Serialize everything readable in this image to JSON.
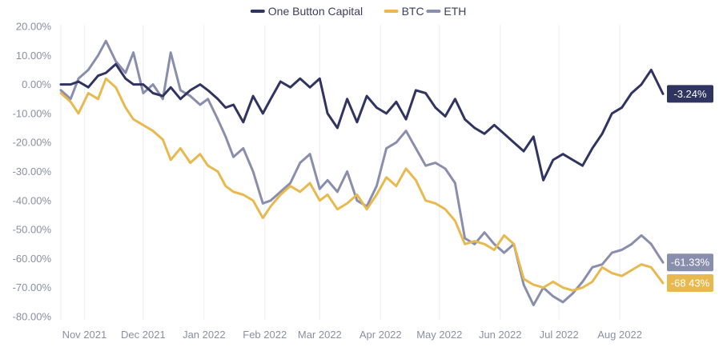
{
  "chart_data": {
    "type": "line",
    "title": "",
    "xlabel": "",
    "ylabel": "",
    "ylim": [
      -80,
      20
    ],
    "y_ticks": [
      20,
      10,
      0,
      -10,
      -20,
      -30,
      -40,
      -50,
      -60,
      -70,
      -80
    ],
    "y_tick_labels": [
      "20.00%",
      "10.00%",
      "0.00%",
      "-10.00%",
      "-20.00%",
      "-30.00%",
      "-40.00%",
      "-50.00%",
      "-60.00%",
      "-70.00%",
      "-80.00%"
    ],
    "x_range": [
      "2021-10-20",
      "2022-08-23"
    ],
    "x_ticks": [
      "2021-11-01",
      "2021-12-01",
      "2022-01-01",
      "2022-02-01",
      "2022-03-01",
      "2022-04-01",
      "2022-05-01",
      "2022-06-01",
      "2022-07-01",
      "2022-08-01"
    ],
    "x_tick_labels": [
      "Nov 2021",
      "Dec 2021",
      "Jan 2022",
      "Feb 2022",
      "Mar 2022",
      "Apr 2022",
      "May 2022",
      "Jun 2022",
      "Jul 2022",
      "Aug 2022"
    ],
    "grid": "vertical",
    "legend": "top-center",
    "series": [
      {
        "name": "One Button Capital",
        "color": "#2f3460",
        "end_label": "-3.24%",
        "x": [
          "2021-10-20",
          "2021-10-25",
          "2021-10-29",
          "2021-11-03",
          "2021-11-08",
          "2021-11-12",
          "2021-11-17",
          "2021-11-22",
          "2021-11-26",
          "2021-12-01",
          "2021-12-06",
          "2021-12-11",
          "2021-12-15",
          "2021-12-20",
          "2021-12-25",
          "2021-12-30",
          "2022-01-03",
          "2022-01-08",
          "2022-01-12",
          "2022-01-16",
          "2022-01-21",
          "2022-01-26",
          "2022-01-31",
          "2022-02-04",
          "2022-02-09",
          "2022-02-14",
          "2022-02-19",
          "2022-02-24",
          "2022-03-01",
          "2022-03-05",
          "2022-03-10",
          "2022-03-15",
          "2022-03-20",
          "2022-03-25",
          "2022-03-30",
          "2022-04-04",
          "2022-04-09",
          "2022-04-14",
          "2022-04-19",
          "2022-04-24",
          "2022-04-29",
          "2022-05-04",
          "2022-05-09",
          "2022-05-14",
          "2022-05-19",
          "2022-05-24",
          "2022-05-29",
          "2022-06-03",
          "2022-06-08",
          "2022-06-13",
          "2022-06-18",
          "2022-06-23",
          "2022-06-28",
          "2022-07-03",
          "2022-07-08",
          "2022-07-13",
          "2022-07-18",
          "2022-07-23",
          "2022-07-28",
          "2022-08-02",
          "2022-08-07",
          "2022-08-12",
          "2022-08-17",
          "2022-08-23"
        ],
        "y": [
          0,
          0,
          1,
          -1,
          3,
          4,
          7,
          2,
          0,
          0,
          -3,
          -4,
          -1,
          -5,
          -2,
          0,
          -2,
          -5,
          -8,
          -7,
          -13,
          -4,
          -10,
          -5,
          1,
          -1,
          2,
          -1,
          2,
          -10,
          -15,
          -5,
          -13,
          -4,
          -8,
          -10,
          -6,
          -12,
          -2,
          -3,
          -8,
          -11,
          -5,
          -12,
          -15,
          -17,
          -14,
          -17,
          -20,
          -23,
          -18,
          -33,
          -26,
          -24,
          -26,
          -28,
          -22,
          -17,
          -10,
          -8,
          -3,
          0,
          5,
          -3.24
        ]
      },
      {
        "name": "BTC",
        "color": "#e8b94e",
        "end_label": "-68 43%",
        "x": [
          "2021-10-20",
          "2021-10-25",
          "2021-10-29",
          "2021-11-03",
          "2021-11-08",
          "2021-11-12",
          "2021-11-17",
          "2021-11-22",
          "2021-11-26",
          "2021-12-01",
          "2021-12-06",
          "2021-12-11",
          "2021-12-15",
          "2021-12-20",
          "2021-12-25",
          "2021-12-30",
          "2022-01-03",
          "2022-01-08",
          "2022-01-12",
          "2022-01-16",
          "2022-01-21",
          "2022-01-26",
          "2022-01-31",
          "2022-02-04",
          "2022-02-09",
          "2022-02-14",
          "2022-02-19",
          "2022-02-24",
          "2022-03-01",
          "2022-03-05",
          "2022-03-10",
          "2022-03-15",
          "2022-03-20",
          "2022-03-25",
          "2022-03-30",
          "2022-04-04",
          "2022-04-09",
          "2022-04-14",
          "2022-04-19",
          "2022-04-24",
          "2022-04-29",
          "2022-05-04",
          "2022-05-09",
          "2022-05-14",
          "2022-05-19",
          "2022-05-24",
          "2022-05-29",
          "2022-06-03",
          "2022-06-08",
          "2022-06-13",
          "2022-06-18",
          "2022-06-23",
          "2022-06-28",
          "2022-07-03",
          "2022-07-08",
          "2022-07-13",
          "2022-07-18",
          "2022-07-23",
          "2022-07-28",
          "2022-08-02",
          "2022-08-07",
          "2022-08-12",
          "2022-08-17",
          "2022-08-23"
        ],
        "y": [
          -3,
          -6,
          -10,
          -3,
          -5,
          2,
          -1,
          -8,
          -12,
          -14,
          -16,
          -19,
          -26,
          -22,
          -27,
          -24,
          -28,
          -30,
          -35,
          -37,
          -38,
          -40,
          -46,
          -42,
          -38,
          -35,
          -37,
          -34,
          -40,
          -38,
          -43,
          -41,
          -38,
          -43,
          -38,
          -32,
          -35,
          -29,
          -33,
          -40,
          -41,
          -43,
          -47,
          -55,
          -54,
          -55,
          -57,
          -52,
          -55,
          -67,
          -69,
          -70,
          -68,
          -70,
          -71,
          -70,
          -68,
          -63,
          -65,
          -66,
          -64,
          -62,
          -63,
          -68.43
        ]
      },
      {
        "name": "ETH",
        "color": "#8a8ead",
        "end_label": "-61.33%",
        "x": [
          "2021-10-20",
          "2021-10-25",
          "2021-10-29",
          "2021-11-03",
          "2021-11-08",
          "2021-11-12",
          "2021-11-17",
          "2021-11-22",
          "2021-11-26",
          "2021-12-01",
          "2021-12-06",
          "2021-12-11",
          "2021-12-15",
          "2021-12-20",
          "2021-12-25",
          "2021-12-30",
          "2022-01-03",
          "2022-01-08",
          "2022-01-12",
          "2022-01-16",
          "2022-01-21",
          "2022-01-26",
          "2022-01-31",
          "2022-02-04",
          "2022-02-09",
          "2022-02-14",
          "2022-02-19",
          "2022-02-24",
          "2022-03-01",
          "2022-03-05",
          "2022-03-10",
          "2022-03-15",
          "2022-03-20",
          "2022-03-25",
          "2022-03-30",
          "2022-04-04",
          "2022-04-09",
          "2022-04-14",
          "2022-04-19",
          "2022-04-24",
          "2022-04-29",
          "2022-05-04",
          "2022-05-09",
          "2022-05-14",
          "2022-05-19",
          "2022-05-24",
          "2022-05-29",
          "2022-06-03",
          "2022-06-08",
          "2022-06-13",
          "2022-06-18",
          "2022-06-23",
          "2022-06-28",
          "2022-07-03",
          "2022-07-08",
          "2022-07-13",
          "2022-07-18",
          "2022-07-23",
          "2022-07-28",
          "2022-08-02",
          "2022-08-07",
          "2022-08-12",
          "2022-08-17",
          "2022-08-23"
        ],
        "y": [
          -2,
          -5,
          2,
          5,
          10,
          15,
          8,
          4,
          11,
          -3,
          0,
          -5,
          11,
          -2,
          -4,
          -7,
          -5,
          -12,
          -18,
          -25,
          -22,
          -30,
          -41,
          -40,
          -37,
          -34,
          -27,
          -24,
          -36,
          -33,
          -37,
          -30,
          -40,
          -42,
          -35,
          -22,
          -20,
          -16,
          -22,
          -28,
          -27,
          -29,
          -34,
          -53,
          -55,
          -51,
          -55,
          -58,
          -55,
          -69,
          -76,
          -70,
          -73,
          -75,
          -72,
          -68,
          -63,
          -62,
          -58,
          -57,
          -55,
          -52,
          -55,
          -61.33
        ]
      }
    ]
  }
}
